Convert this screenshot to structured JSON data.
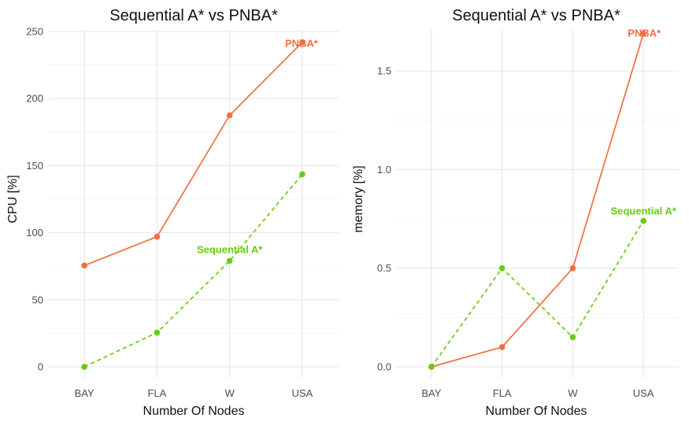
{
  "chart_data": [
    {
      "type": "line",
      "title": "Sequential A* vs PNBA*",
      "xlabel": "Number Of Nodes",
      "ylabel": "CPU [%]",
      "categories": [
        "BAY",
        "FLA",
        "W",
        "USA"
      ],
      "ylim": [
        0,
        250
      ],
      "yticks": [
        0,
        50,
        100,
        150,
        200,
        250
      ],
      "grid": true,
      "legend": "none (direct series labels)",
      "series": [
        {
          "name": "PNBA*",
          "values": [
            75.5,
            97,
            187.5,
            242
          ],
          "color": "#f46d43",
          "line_style": "solid",
          "label_category": "USA"
        },
        {
          "name": "Sequential A*",
          "values": [
            0,
            25.5,
            79,
            143.5
          ],
          "color": "#66cc11",
          "line_style": "dashed",
          "label_category": "W"
        }
      ]
    },
    {
      "type": "line",
      "title": "Sequential A* vs PNBA*",
      "xlabel": "Number Of Nodes",
      "ylabel": "memory [%]",
      "categories": [
        "BAY",
        "FLA",
        "W",
        "USA"
      ],
      "ylim": [
        0,
        1.7
      ],
      "yticks": [
        0.0,
        0.5,
        1.0,
        1.5
      ],
      "ytick_labels": [
        "0.0",
        "0.5",
        "1.0",
        "1.5"
      ],
      "grid": true,
      "legend": "none (direct series labels)",
      "series": [
        {
          "name": "PNBA*",
          "values": [
            0,
            0.1,
            0.5,
            1.69
          ],
          "color": "#f46d43",
          "line_style": "solid",
          "label_category": "USA"
        },
        {
          "name": "Sequential A*",
          "values": [
            0,
            0.5,
            0.15,
            0.74
          ],
          "color": "#66cc11",
          "line_style": "dashed",
          "label_category": "USA"
        }
      ]
    }
  ]
}
